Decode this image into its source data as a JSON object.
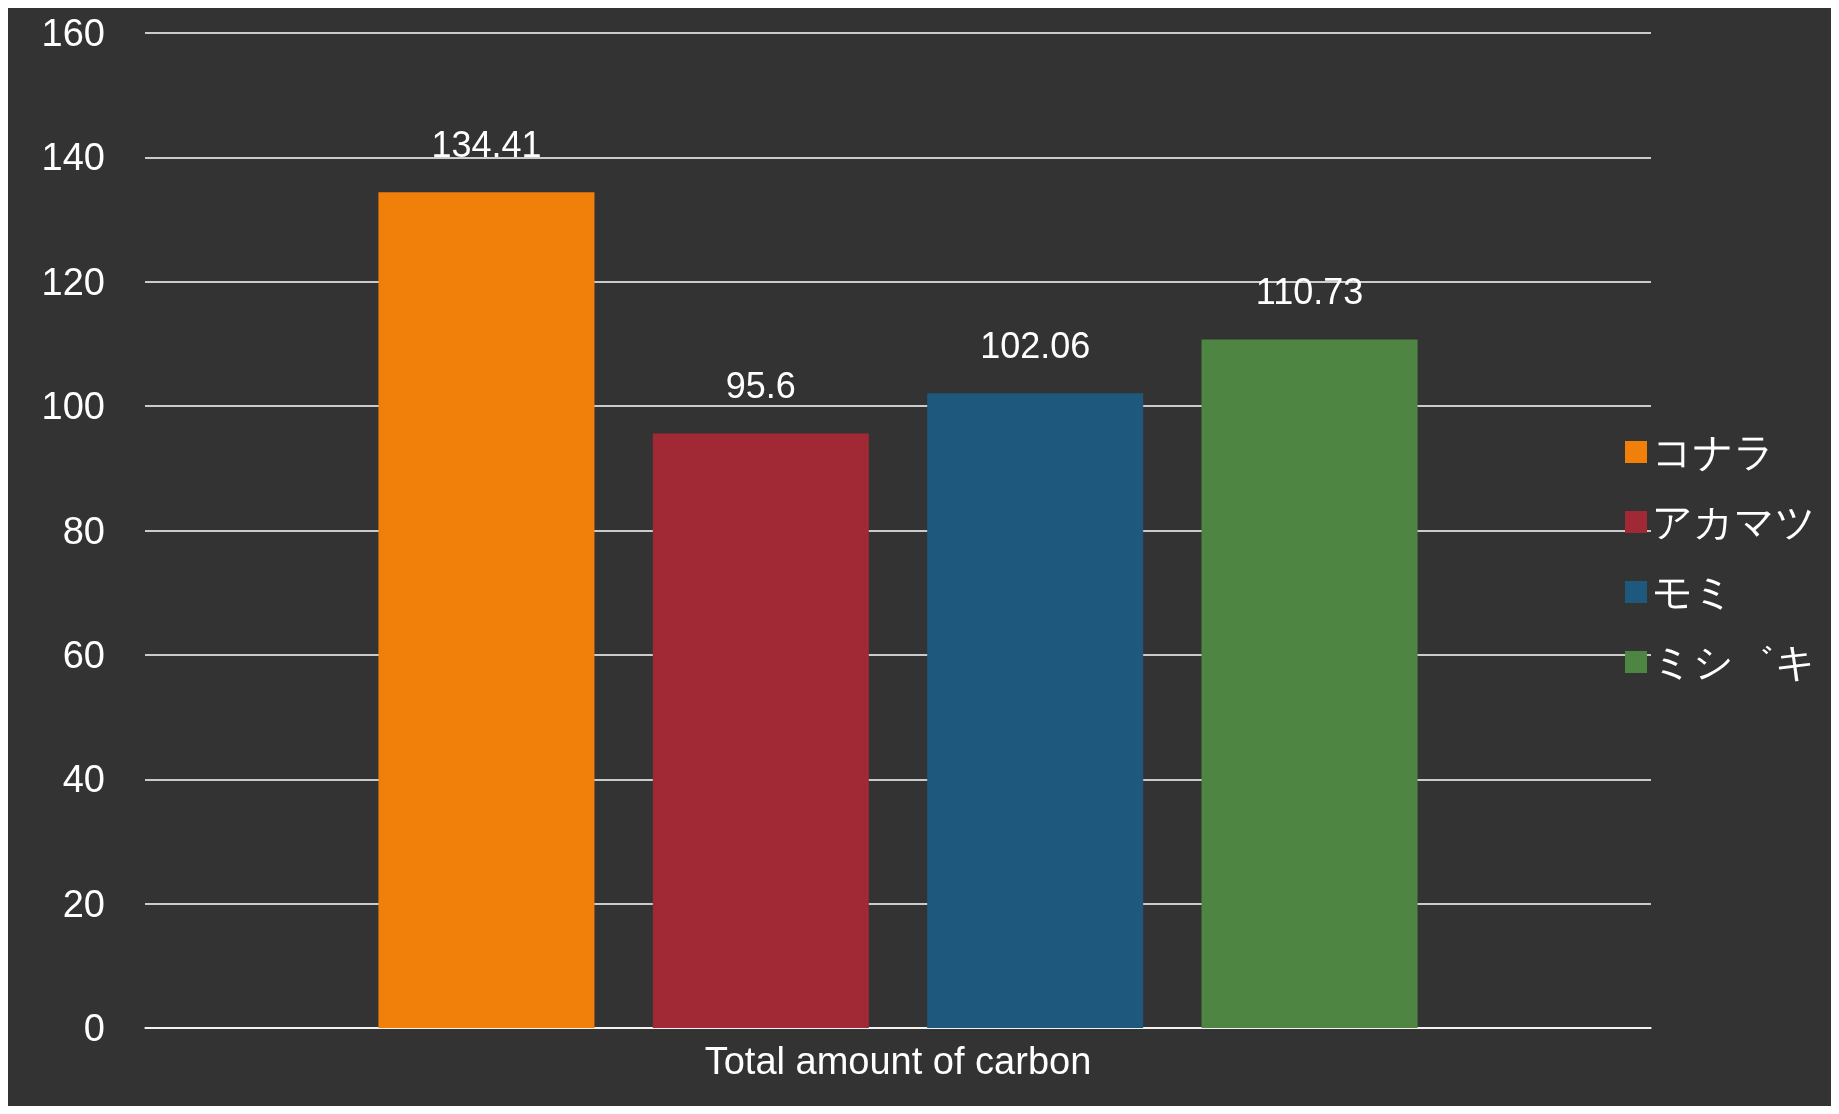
{
  "chart_data": {
    "type": "bar",
    "categories": [
      "Total amount of carbon"
    ],
    "series": [
      {
        "name": "コナラ",
        "color": "#f0800a",
        "values": [
          134.41
        ]
      },
      {
        "name": "アカマツ",
        "color": "#a12835",
        "values": [
          95.6
        ]
      },
      {
        "name": "モミ",
        "color": "#1e587c",
        "values": [
          102.06
        ]
      },
      {
        "name": "ミシ゛キ",
        "color": "#4e8542",
        "values": [
          110.73
        ]
      }
    ],
    "ylim": [
      0,
      160
    ],
    "yticks": [
      0,
      20,
      40,
      60,
      80,
      100,
      120,
      140,
      160
    ],
    "grid": "y",
    "legend": "right",
    "data_labels": true
  }
}
